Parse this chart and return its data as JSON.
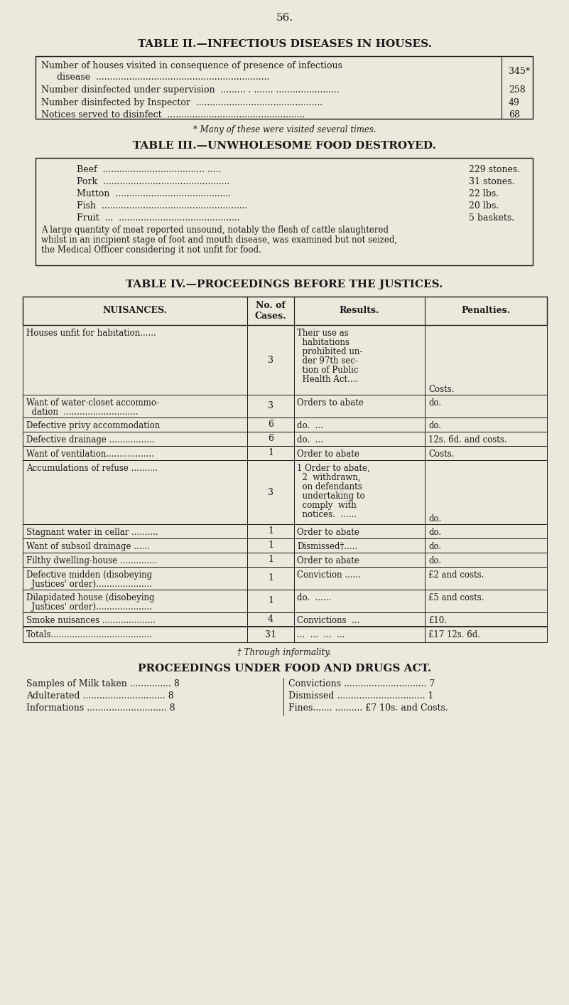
{
  "bg_color": "#ede8dc",
  "text_color": "#1a1a1a",
  "page_number": "56.",
  "table2_title": "TABLE II.—INFECTIOUS DISEASES IN HOUSES.",
  "table2_footnote": "* Many of these were visited several times.",
  "table3_title": "TABLE III.—UNWHOLESOME FOOD DESTROYED.",
  "table3_note_lines": [
    "A large quantity of meat reported unsound, notably the flesh of cattle slaughtered",
    "whilst in an incipient stage of foot and mouth disease, was examined but not seized,",
    "the Medical Officer considering it not unfit for food."
  ],
  "table4_title": "TABLE IV.—PROCEEDINGS BEFORE THE JUSTICES.",
  "table4_headers": [
    "NUISANCES.",
    "No. of\nCases.",
    "Results.",
    "Penalties."
  ],
  "table4_footnote": "† Through informality.",
  "proceedings_title": "PROCEEDINGS UNDER FOOD AND DRUGS ACT."
}
